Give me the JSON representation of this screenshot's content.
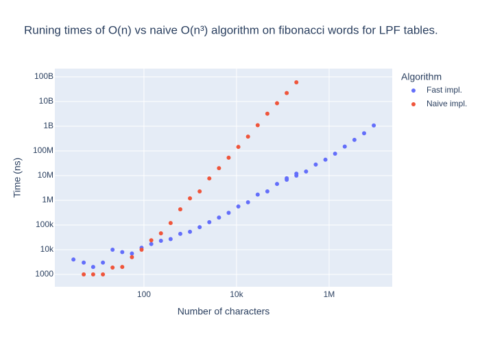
{
  "chart_data": {
    "type": "scatter",
    "title": "Runing times of O(n) vs naive O(n³) algorithm on fibonacci words for LPF tables.",
    "x_label": "Number of characters",
    "y_label": "Time (ns)",
    "legend_title": "Algorithm",
    "legend_position": "right",
    "xscale": "log",
    "yscale": "log",
    "grid": true,
    "xlim": [
      1.19,
      23100000
    ],
    "ylim": [
      316,
      215000000000
    ],
    "xticks": [
      100,
      {
        "value": 10000,
        "label": "10k"
      },
      {
        "value": 1000000,
        "label": "1M"
      }
    ],
    "yticks": [
      1000,
      {
        "value": 10000,
        "label": "10k"
      },
      {
        "value": 100000,
        "label": "100k"
      },
      {
        "value": 1000000,
        "label": "1M"
      },
      {
        "value": 10000000,
        "label": "10M"
      },
      {
        "value": 100000000,
        "label": "100M"
      },
      {
        "value": 1000000000,
        "label": "1B"
      },
      {
        "value": 10000000000,
        "label": "10B"
      },
      {
        "value": 100000000000,
        "label": "100B"
      }
    ],
    "series": [
      {
        "name": "Fast impl.",
        "color": "#636efa",
        "x": [
          3,
          5,
          8,
          13,
          21,
          34,
          55,
          89,
          144,
          233,
          377,
          610,
          987,
          1597,
          2584,
          4181,
          6765,
          10946,
          17711,
          28657,
          46368,
          75025,
          121393,
          121393,
          196418,
          196418,
          317811,
          514229,
          832040,
          1346269,
          2178309,
          3524578,
          5702887,
          9227465
        ],
        "values": [
          4000,
          3000,
          2000,
          3000,
          10000,
          8000,
          7000,
          12000,
          17000,
          23000,
          27000,
          44000,
          53000,
          82000,
          130000,
          200000,
          310000,
          560000,
          830000,
          1700000,
          2300000,
          4600000,
          6800000,
          7800000,
          10000000,
          12000000,
          14700000,
          28000000,
          44000000,
          77000000,
          150000000,
          280000000,
          520000000,
          1070000000
        ]
      },
      {
        "name": "Naive impl.",
        "color": "#ef553b",
        "x": [
          5,
          8,
          13,
          21,
          34,
          55,
          89,
          144,
          233,
          377,
          610,
          987,
          1597,
          2584,
          4181,
          6765,
          10946,
          17711,
          28657,
          46368,
          75025,
          121393,
          196418
        ],
        "values": [
          1000,
          1000,
          1000,
          1900,
          2000,
          5000,
          10000,
          24000,
          46000,
          120000,
          430000,
          1200000,
          2300000,
          7700000,
          20000000,
          53000000,
          145000000,
          380000000,
          1100000000,
          3200000000,
          8500000000,
          22000000000,
          60000000000
        ]
      }
    ]
  }
}
